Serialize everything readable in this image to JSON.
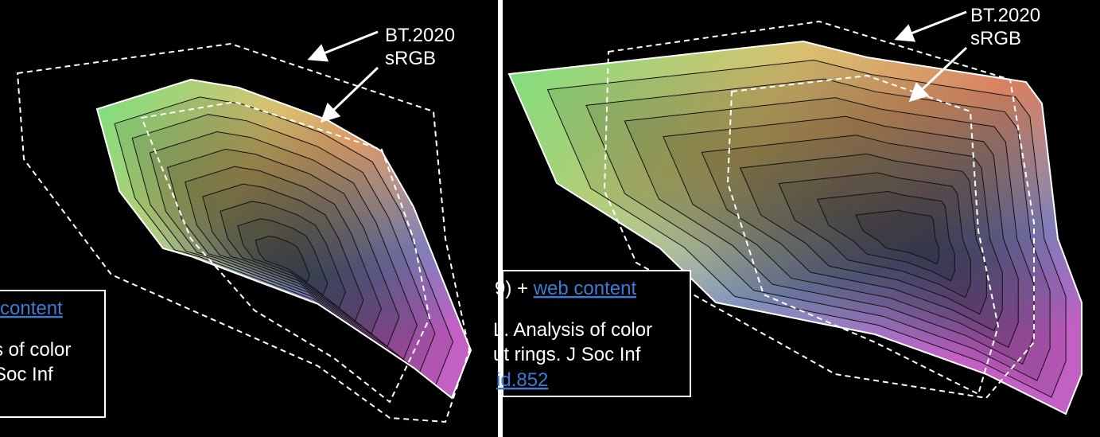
{
  "panels": [
    {
      "labels": {
        "outer": "BT.2020",
        "inner": "sRGB"
      },
      "caption": {
        "link": "content",
        "line1": "s of color",
        "line2": " Soc Inf"
      }
    },
    {
      "labels": {
        "outer": "BT.2020",
        "inner": "sRGB"
      },
      "caption": {
        "prefix": "9) + ",
        "link": "web content",
        "line1": "L. Analysis of color",
        "line2": "ut rings. J Soc Inf",
        "link2": "id.852"
      }
    }
  ]
}
